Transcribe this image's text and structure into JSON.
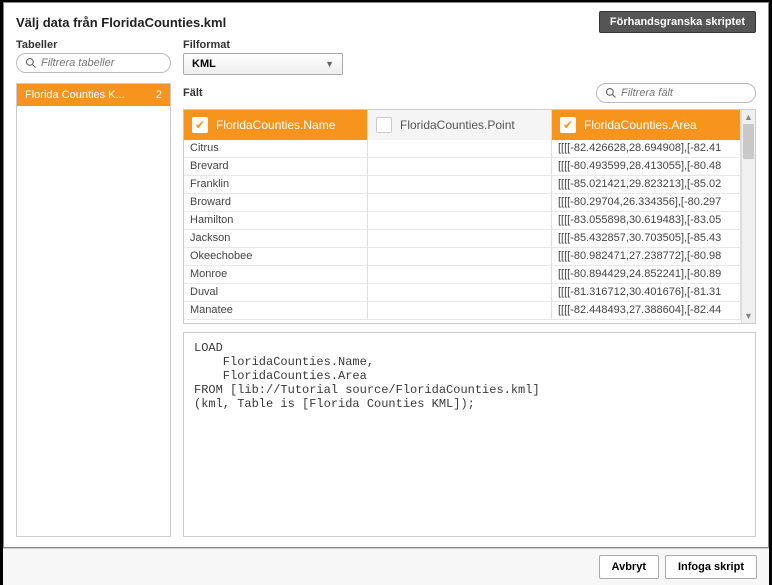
{
  "header": {
    "title": "Välj data från FloridaCounties.kml",
    "preview_button": "Förhandsgranska skriptet"
  },
  "tables": {
    "label": "Tabeller",
    "filter_placeholder": "Filtrera tabeller",
    "items": [
      {
        "name": "Florida Counties K...",
        "count": "2"
      }
    ]
  },
  "fileformat": {
    "label": "Filformat",
    "value": "KML"
  },
  "fields": {
    "label": "Fält",
    "filter_placeholder": "Filtrera fält",
    "columns": [
      {
        "name": "FloridaCounties.Name",
        "selected": true
      },
      {
        "name": "FloridaCounties.Point",
        "selected": false
      },
      {
        "name": "FloridaCounties.Area",
        "selected": true
      }
    ],
    "rows": [
      {
        "c0": "Citrus",
        "c1": "",
        "c2": "[[[[-82.426628,28.694908],[-82.41"
      },
      {
        "c0": "Brevard",
        "c1": "",
        "c2": "[[[[-80.493599,28.413055],[-80.48"
      },
      {
        "c0": "Franklin",
        "c1": "",
        "c2": "[[[[-85.021421,29.823213],[-85.02"
      },
      {
        "c0": "Broward",
        "c1": "",
        "c2": "[[[[-80.29704,26.334356],[-80.297"
      },
      {
        "c0": "Hamilton",
        "c1": "",
        "c2": "[[[[-83.055898,30.619483],[-83.05"
      },
      {
        "c0": "Jackson",
        "c1": "",
        "c2": "[[[[-85.432857,30.703505],[-85.43"
      },
      {
        "c0": "Okeechobee",
        "c1": "",
        "c2": "[[[[-80.982471,27.238772],[-80.98"
      },
      {
        "c0": "Monroe",
        "c1": "",
        "c2": "[[[[-80.894429,24.852241],[-80.89"
      },
      {
        "c0": "Duval",
        "c1": "",
        "c2": "[[[[-81.316712,30.401676],[-81.31"
      },
      {
        "c0": "Manatee",
        "c1": "",
        "c2": "[[[[-82.448493,27.388604],[-82.44"
      }
    ]
  },
  "script": "LOAD\n    FloridaCounties.Name,\n    FloridaCounties.Area\nFROM [lib://Tutorial source/FloridaCounties.kml]\n(kml, Table is [Florida Counties KML]);",
  "footer": {
    "cancel": "Avbryt",
    "insert": "Infoga skript"
  },
  "colors": {
    "accent": "#f7941d",
    "border": "#cccccc"
  }
}
